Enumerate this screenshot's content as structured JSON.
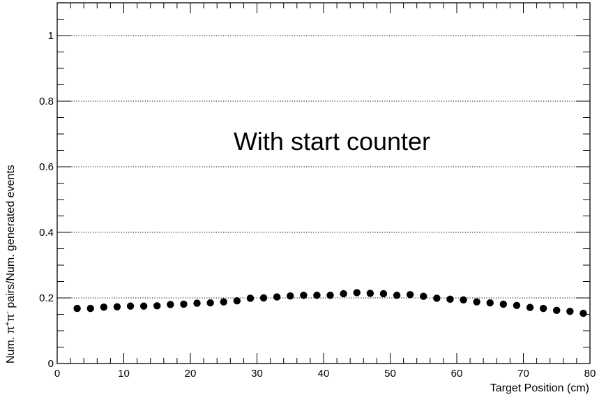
{
  "chart_data": {
    "type": "scatter",
    "title": "",
    "xlabel": "Target Position (cm)",
    "ylabel": "Num. π+π- pairs/Num. generated events",
    "ylabel_parts": {
      "prefix": "Num. π",
      "sup1": "+",
      "mid": "π",
      "sup2": "-",
      "suffix": " pairs/Num. generated events"
    },
    "annotation": "With start counter",
    "xlim": [
      0,
      80
    ],
    "ylim": [
      0,
      1.1
    ],
    "x_ticks": [
      0,
      10,
      20,
      30,
      40,
      50,
      60,
      70,
      80
    ],
    "y_ticks": [
      0,
      0.2,
      0.4,
      0.6,
      0.8,
      1
    ],
    "y_tick_labels": [
      "0",
      "0.2",
      "0.4",
      "0.6",
      "0.8",
      "1"
    ],
    "grid": "horizontal dotted at y ticks",
    "marker_color": "#000000",
    "series": [
      {
        "x": [
          3,
          5,
          7,
          9,
          11,
          13,
          15,
          17,
          19,
          21,
          23,
          25,
          27,
          29,
          31,
          33,
          35,
          37,
          39,
          41,
          43,
          45,
          47,
          49,
          51,
          53,
          55,
          57,
          59,
          61,
          63,
          65,
          67,
          69,
          71,
          73,
          75,
          77,
          79
        ],
        "y": [
          0.168,
          0.168,
          0.172,
          0.173,
          0.175,
          0.175,
          0.176,
          0.18,
          0.181,
          0.184,
          0.185,
          0.188,
          0.191,
          0.199,
          0.2,
          0.203,
          0.206,
          0.208,
          0.208,
          0.208,
          0.213,
          0.216,
          0.214,
          0.213,
          0.208,
          0.21,
          0.205,
          0.199,
          0.196,
          0.194,
          0.188,
          0.185,
          0.181,
          0.177,
          0.171,
          0.168,
          0.162,
          0.159,
          0.153
        ]
      }
    ]
  }
}
